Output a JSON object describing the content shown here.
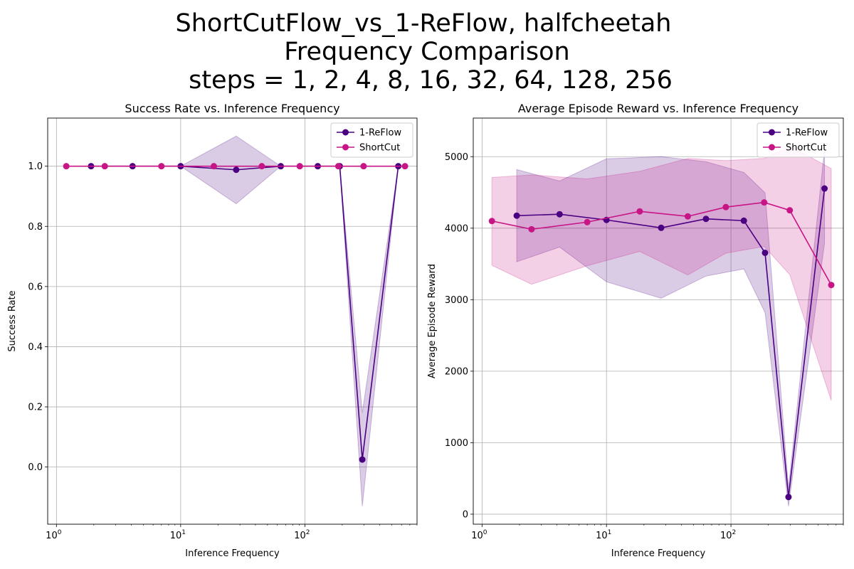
{
  "figure": {
    "title_lines": [
      "ShortCutFlow_vs_1-ReFlow, halfcheetah",
      "Frequency Comparison",
      "steps = 1, 2, 4, 8, 16, 32, 64, 128, 256"
    ]
  },
  "chart_data": [
    {
      "type": "line",
      "title": "Success Rate vs. Inference Frequency",
      "xlabel": "Inference Frequency",
      "ylabel": "Success Rate",
      "xscale": "log",
      "xlim": [
        0.85,
        800
      ],
      "ylim": [
        -0.19,
        1.16
      ],
      "xticks": [
        1,
        10,
        100
      ],
      "xtick_labels": [
        [
          "10",
          "0"
        ],
        [
          "10",
          "1"
        ],
        [
          "10",
          "2"
        ]
      ],
      "yticks": [
        0.0,
        0.2,
        0.4,
        0.6,
        0.8,
        1.0
      ],
      "ytick_labels": [
        "0.0",
        "0.2",
        "0.4",
        "0.6",
        "0.8",
        "1.0"
      ],
      "grid": true,
      "legend_position": "top-right",
      "series": [
        {
          "name": "1-ReFlow",
          "color": "#4b0082",
          "x": [
            1.9,
            4.1,
            10,
            28,
            64,
            127,
            191,
            290,
            565
          ],
          "y": [
            1.0,
            1.0,
            1.0,
            0.988,
            1.0,
            1.0,
            1.0,
            0.025,
            1.0
          ],
          "lower": [
            1.0,
            1.0,
            1.0,
            0.875,
            1.0,
            1.0,
            1.0,
            -0.13,
            1.0
          ],
          "upper": [
            1.0,
            1.0,
            1.0,
            1.1,
            1.0,
            1.0,
            1.0,
            0.18,
            1.0
          ]
        },
        {
          "name": "ShortCut",
          "color": "#c71585",
          "x": [
            1.2,
            2.45,
            7,
            18.5,
            45,
            91,
            186,
            297,
            640
          ],
          "y": [
            1.0,
            1.0,
            1.0,
            1.0,
            1.0,
            1.0,
            1.0,
            1.0,
            1.0
          ],
          "lower": [
            1.0,
            1.0,
            1.0,
            1.0,
            1.0,
            1.0,
            1.0,
            1.0,
            1.0
          ],
          "upper": [
            1.0,
            1.0,
            1.0,
            1.0,
            1.0,
            1.0,
            1.0,
            1.0,
            1.0
          ]
        }
      ]
    },
    {
      "type": "line",
      "title": "Average Episode Reward vs. Inference Frequency",
      "xlabel": "Inference Frequency",
      "ylabel": "Average Episode Reward",
      "xscale": "log",
      "xlim": [
        0.85,
        800
      ],
      "ylim": [
        -140,
        5540
      ],
      "xticks": [
        1,
        10,
        100
      ],
      "xtick_labels": [
        [
          "10",
          "0"
        ],
        [
          "10",
          "1"
        ],
        [
          "10",
          "2"
        ]
      ],
      "yticks": [
        0,
        1000,
        2000,
        3000,
        4000,
        5000
      ],
      "ytick_labels": [
        "0",
        "1000",
        "2000",
        "3000",
        "4000",
        "5000"
      ],
      "grid": true,
      "legend_position": "top-right",
      "series": [
        {
          "name": "1-ReFlow",
          "color": "#4b0082",
          "x": [
            1.9,
            4.2,
            10,
            27.5,
            63,
            127,
            188,
            290,
            565
          ],
          "y": [
            4175,
            4195,
            4115,
            4005,
            4130,
            4105,
            3655,
            240,
            4555
          ],
          "lower": [
            3530,
            3735,
            3250,
            3020,
            3330,
            3430,
            2820,
            110,
            3790
          ],
          "upper": [
            4820,
            4660,
            4970,
            5000,
            4930,
            4780,
            4495,
            370,
            5100
          ]
        },
        {
          "name": "ShortCut",
          "color": "#c71585",
          "x": [
            1.2,
            2.5,
            7,
            18.5,
            45,
            91,
            185,
            297,
            640
          ],
          "y": [
            4100,
            3985,
            4085,
            4235,
            4165,
            4295,
            4360,
            4250,
            3205
          ],
          "lower": [
            3480,
            3215,
            3475,
            3675,
            3345,
            3650,
            3745,
            3350,
            1590
          ],
          "upper": [
            4710,
            4745,
            4690,
            4795,
            4975,
            4945,
            4975,
            5150,
            4835
          ]
        }
      ]
    }
  ]
}
